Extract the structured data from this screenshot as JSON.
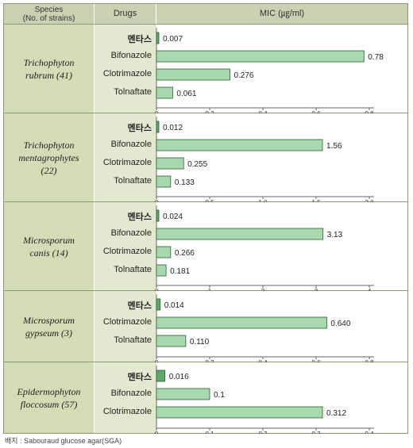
{
  "header": {
    "species_line1": "Species",
    "species_line2": "(No. of strains)",
    "drugs": "Drugs",
    "mic": "MIC (㎍/ml)"
  },
  "footnote": "배지 : Sabouraud glucose agar(SGA)",
  "colors": {
    "bar": "#a8d8ad",
    "bar_brand": "#5ea869",
    "bar_stroke": "#2e5e33",
    "header_bg": "#c9d1b2",
    "species_bg": "#d3dcb4",
    "drugs_bg": "#e3e8d0"
  },
  "chart_data": [
    {
      "type": "bar",
      "species": [
        "Trichophyton",
        "rubrum (41)"
      ],
      "categories": [
        "멘타스",
        "Bifonazole",
        "Clotrimazole",
        "Tolnaftate"
      ],
      "values": [
        0.007,
        0.78,
        0.276,
        0.061
      ],
      "value_labels": [
        "0.007",
        "0.78",
        "0.276",
        "0.061"
      ],
      "xlim": [
        0,
        0.8
      ],
      "ticks": [
        0,
        0.2,
        0.4,
        0.6,
        0.8
      ],
      "tick_labels": [
        "0",
        "0.2",
        "0.4",
        "0.6",
        "0.8"
      ]
    },
    {
      "type": "bar",
      "species": [
        "Trichophyton",
        "mentagrophytes",
        "(22)"
      ],
      "categories": [
        "멘타스",
        "Bifonazole",
        "Clotrimazole",
        "Tolnaftate"
      ],
      "values": [
        0.012,
        1.56,
        0.255,
        0.133
      ],
      "value_labels": [
        "0.012",
        "1.56",
        "0.255",
        "0.133"
      ],
      "xlim": [
        0,
        2.0
      ],
      "ticks": [
        0,
        0.5,
        1.0,
        1.5,
        2.0
      ],
      "tick_labels": [
        "0",
        "0.5",
        "1.0",
        "1.5",
        "2.0"
      ]
    },
    {
      "type": "bar",
      "species": [
        "Microsporum",
        "canis (14)"
      ],
      "categories": [
        "멘타스",
        "Bifonazole",
        "Clotrimazole",
        "Tolnaftate"
      ],
      "values": [
        0.024,
        3.13,
        0.266,
        0.181
      ],
      "value_labels": [
        "0.024",
        "3.13",
        "0.266",
        "0.181"
      ],
      "xlim": [
        0,
        4
      ],
      "ticks": [
        0,
        1,
        2,
        3,
        4
      ],
      "tick_labels": [
        "0",
        "1",
        "2",
        "3",
        "4"
      ]
    },
    {
      "type": "bar",
      "species": [
        "Microsporum",
        "gypseum (3)"
      ],
      "categories": [
        "멘타스",
        "Clotrimazole",
        "Tolnaftate"
      ],
      "values": [
        0.014,
        0.64,
        0.11
      ],
      "value_labels": [
        "0.014",
        "0.640",
        "0.110"
      ],
      "xlim": [
        0,
        0.8
      ],
      "ticks": [
        0,
        0.2,
        0.4,
        0.6,
        0.8
      ],
      "tick_labels": [
        "0",
        "0.2",
        "0.4",
        "0.6",
        "0.8"
      ]
    },
    {
      "type": "bar",
      "species": [
        "Epidermophyton",
        "floccosum (57)"
      ],
      "categories": [
        "멘타스",
        "Bifonazole",
        "Clotrimazole"
      ],
      "values": [
        0.016,
        0.1,
        0.312
      ],
      "value_labels": [
        "0.016",
        "0.1",
        "0.312"
      ],
      "xlim": [
        0,
        0.4
      ],
      "ticks": [
        0,
        0.1,
        0.2,
        0.3,
        0.4
      ],
      "tick_labels": [
        "0",
        "0.1",
        "0.2",
        "0.3",
        "0.4"
      ]
    }
  ]
}
